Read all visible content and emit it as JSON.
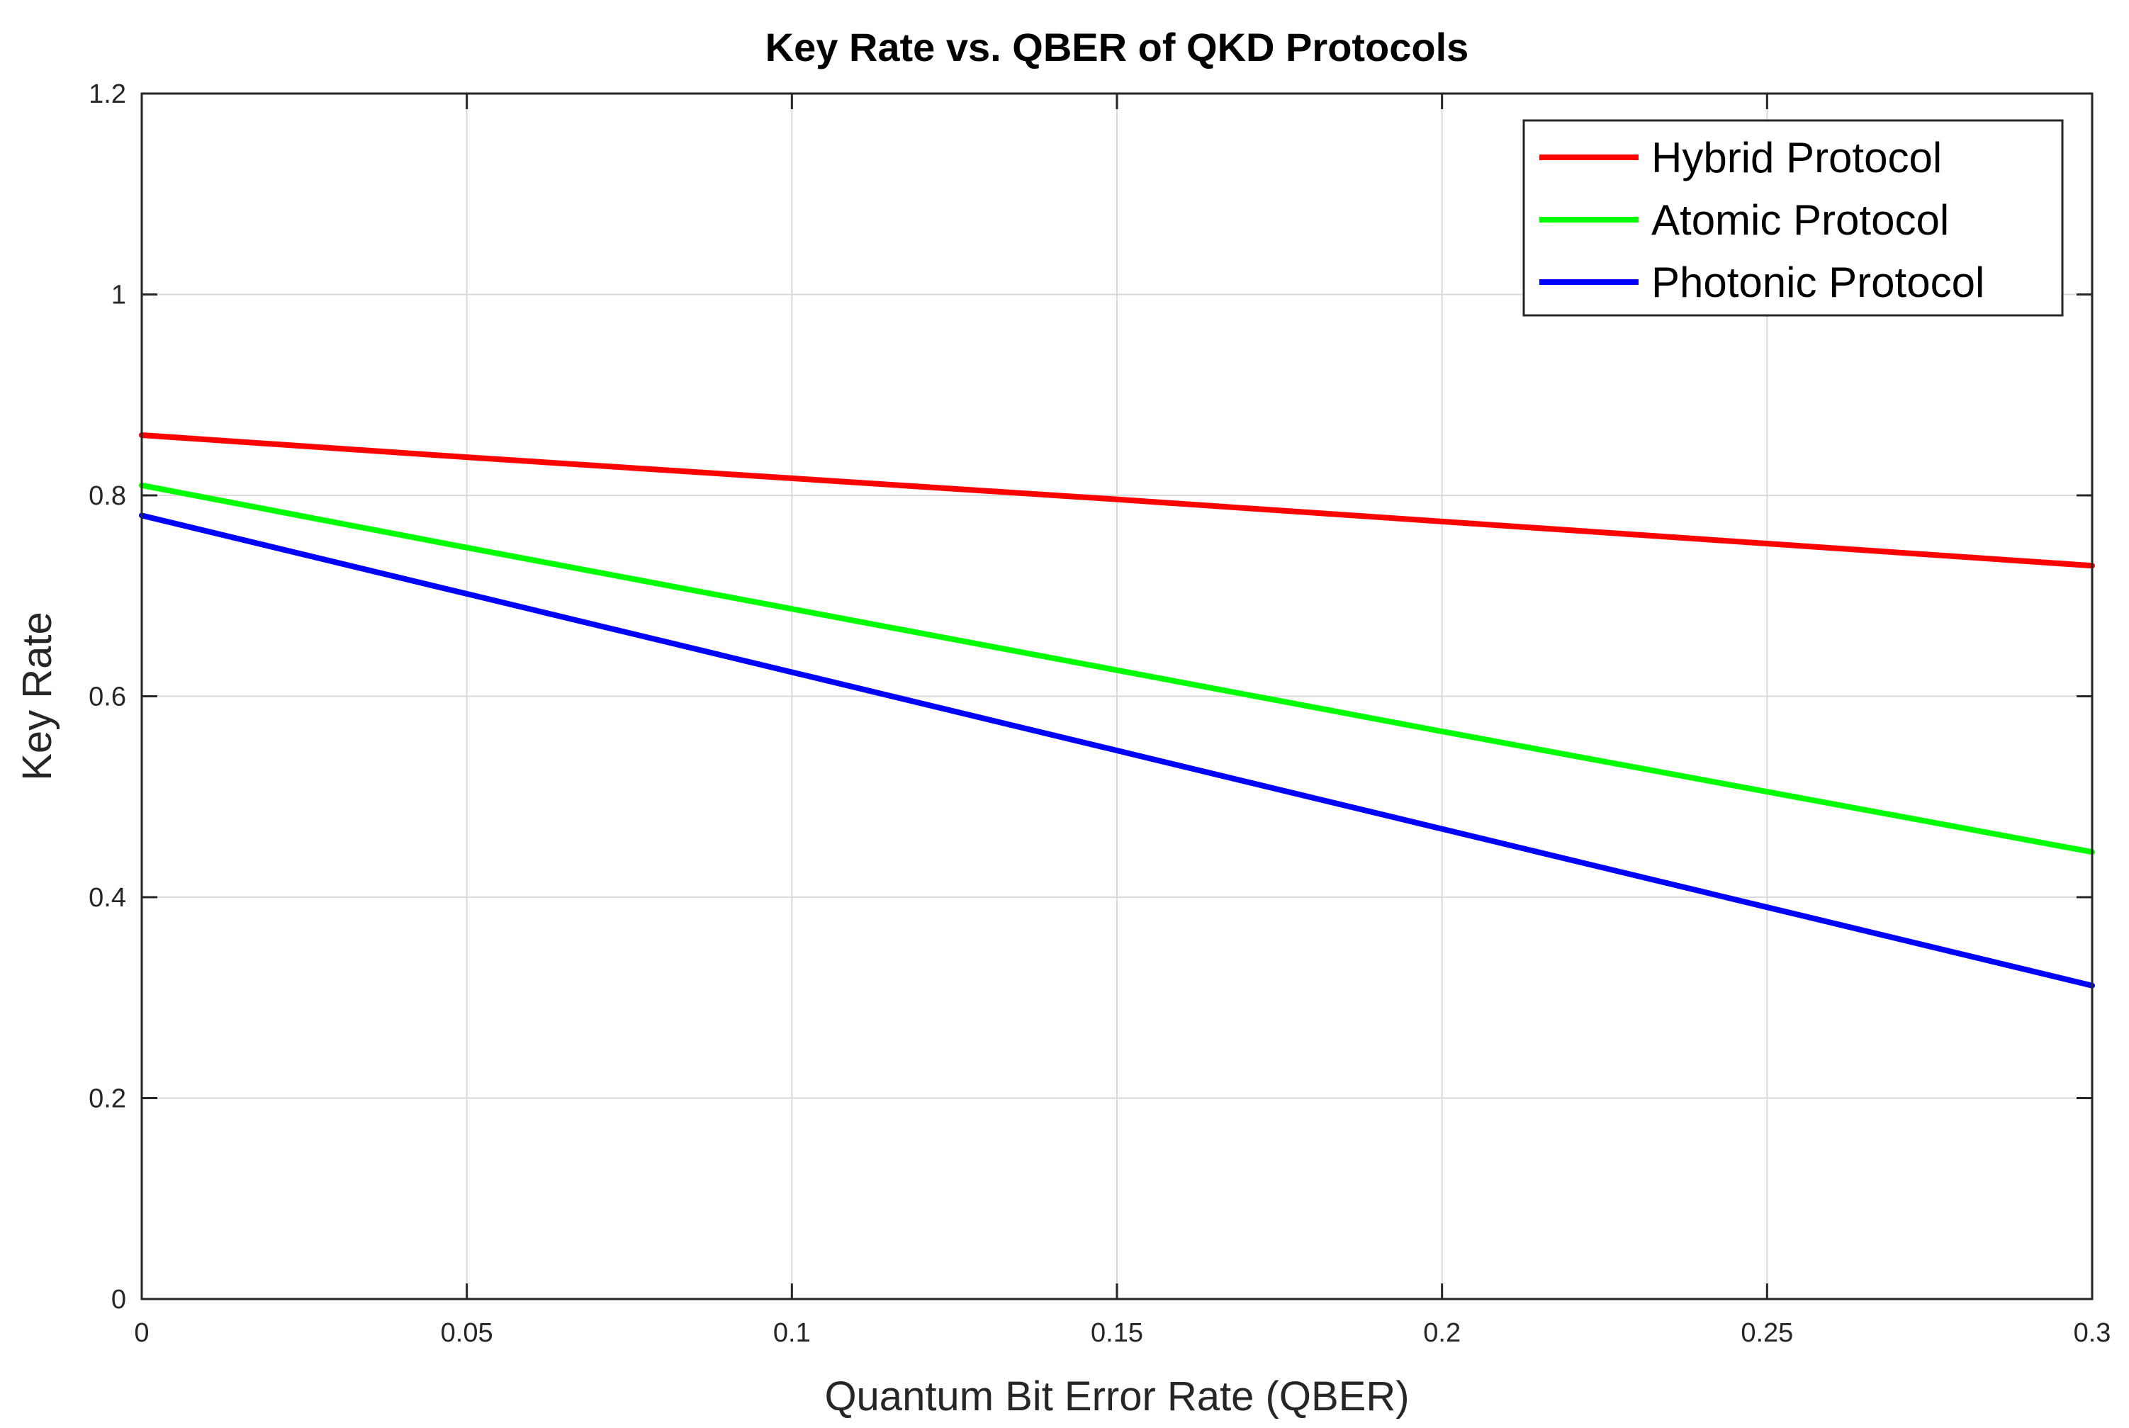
{
  "chart_data": {
    "type": "line",
    "title": "Key Rate vs. QBER of QKD Protocols",
    "xlabel": "Quantum Bit Error Rate (QBER)",
    "ylabel": "Key Rate",
    "xlim": [
      0,
      0.3
    ],
    "ylim": [
      0,
      1.2
    ],
    "xticks": [
      0,
      0.05,
      0.1,
      0.15,
      0.2,
      0.25,
      0.3
    ],
    "xtick_labels": [
      "0",
      "0.05",
      "0.1",
      "0.15",
      "0.2",
      "0.25",
      "0.3"
    ],
    "yticks": [
      0,
      0.2,
      0.4,
      0.6,
      0.8,
      1,
      1.2
    ],
    "ytick_labels": [
      "0",
      "0.2",
      "0.4",
      "0.6",
      "0.8",
      "1",
      "1.2"
    ],
    "grid": true,
    "legend_position": "top-right",
    "series": [
      {
        "name": "Hybrid Protocol",
        "color": "#ff0000",
        "x": [
          0,
          0.05,
          0.1,
          0.15,
          0.2,
          0.25,
          0.3
        ],
        "values": [
          0.86,
          0.838,
          0.817,
          0.796,
          0.774,
          0.752,
          0.73
        ]
      },
      {
        "name": "Atomic Protocol",
        "color": "#00ff00",
        "x": [
          0,
          0.05,
          0.1,
          0.15,
          0.2,
          0.25,
          0.3
        ],
        "values": [
          0.81,
          0.748,
          0.687,
          0.626,
          0.565,
          0.505,
          0.445
        ]
      },
      {
        "name": "Photonic Protocol",
        "color": "#0000ff",
        "x": [
          0,
          0.05,
          0.1,
          0.15,
          0.2,
          0.25,
          0.3
        ],
        "values": [
          0.78,
          0.702,
          0.624,
          0.546,
          0.468,
          0.39,
          0.312
        ]
      }
    ]
  }
}
